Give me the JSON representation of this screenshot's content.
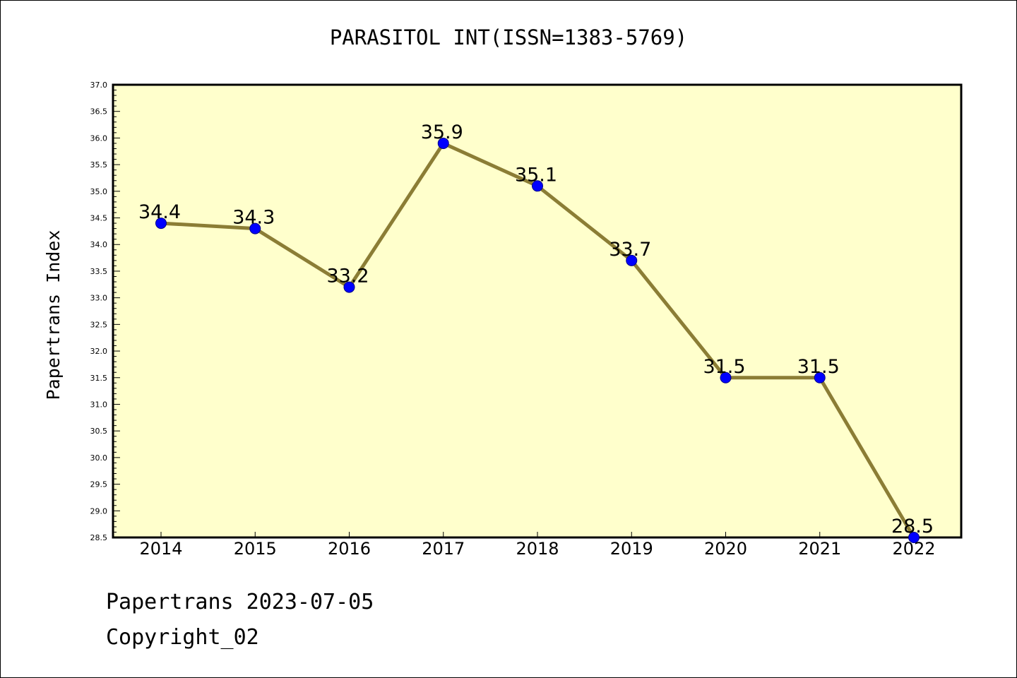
{
  "chart_data": {
    "type": "line",
    "title": "PARASITOL INT(ISSN=1383-5769)",
    "ylabel": "Papertrans Index",
    "xlabel": "",
    "x": [
      "2014",
      "2015",
      "2016",
      "2017",
      "2018",
      "2019",
      "2020",
      "2021",
      "2022"
    ],
    "series": [
      {
        "values": [
          34.4,
          34.3,
          33.2,
          35.9,
          35.1,
          33.7,
          31.5,
          31.5,
          28.5
        ],
        "labels": [
          "34.4",
          "34.3",
          "33.2",
          "35.9",
          "35.1",
          "33.7",
          "31.5",
          "31.5",
          "28.5"
        ]
      }
    ],
    "ylim": [
      28.5,
      37.0
    ],
    "yticks": [
      "28.5",
      "29.0",
      "29.5",
      "30.0",
      "30.5",
      "31.0",
      "31.5",
      "32.0",
      "32.5",
      "33.0",
      "33.5",
      "34.0",
      "34.5",
      "35.0",
      "35.5",
      "36.0",
      "36.5",
      "37.0"
    ],
    "grid": false,
    "colors": {
      "plot_bg": "#ffffcc",
      "line": "#8b7d35",
      "marker": "#0000ff"
    }
  },
  "footer": {
    "line1": "Papertrans 2023-07-05",
    "line2": "Copyright_02"
  }
}
